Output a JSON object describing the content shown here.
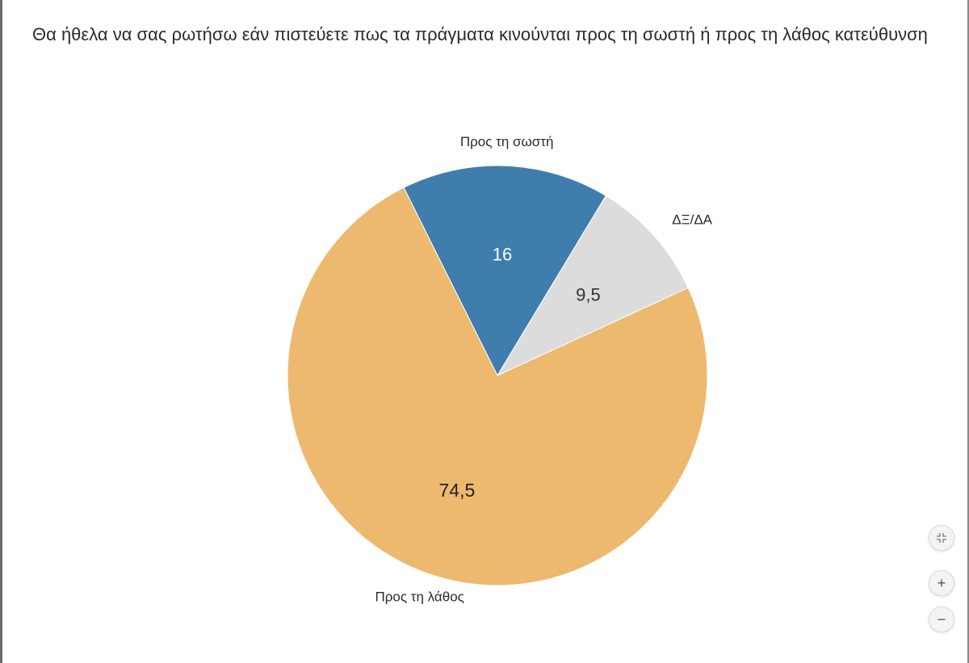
{
  "title": "Θα ήθελα να σας ρωτήσω εάν πιστεύετε πως τα πράγματα κινούνται προς τη σωστή ή προς τη λάθος κατεύθυνση",
  "controls": {
    "zoom_in_label": "+",
    "zoom_out_label": "−"
  },
  "chart_data": {
    "type": "pie",
    "title": "Θα ήθελα να σας ρωτήσω εάν πιστεύετε πως τα πράγματα κινούνται προς τη σωστή ή προς τη λάθος κατεύθυνση",
    "slices": [
      {
        "label": "Προς τη σωστή",
        "value": 16,
        "value_label": "16",
        "color": "#3f7dad",
        "value_color": "#ffffff"
      },
      {
        "label": "ΔΞ/ΔΑ",
        "value": 9.5,
        "value_label": "9,5",
        "color": "#dcdcdc",
        "value_color": "#333333"
      },
      {
        "label": "Προς τη λάθος",
        "value": 74.5,
        "value_label": "74,5",
        "color": "#edb96f",
        "value_color": "#222222"
      }
    ],
    "legend": "none"
  }
}
